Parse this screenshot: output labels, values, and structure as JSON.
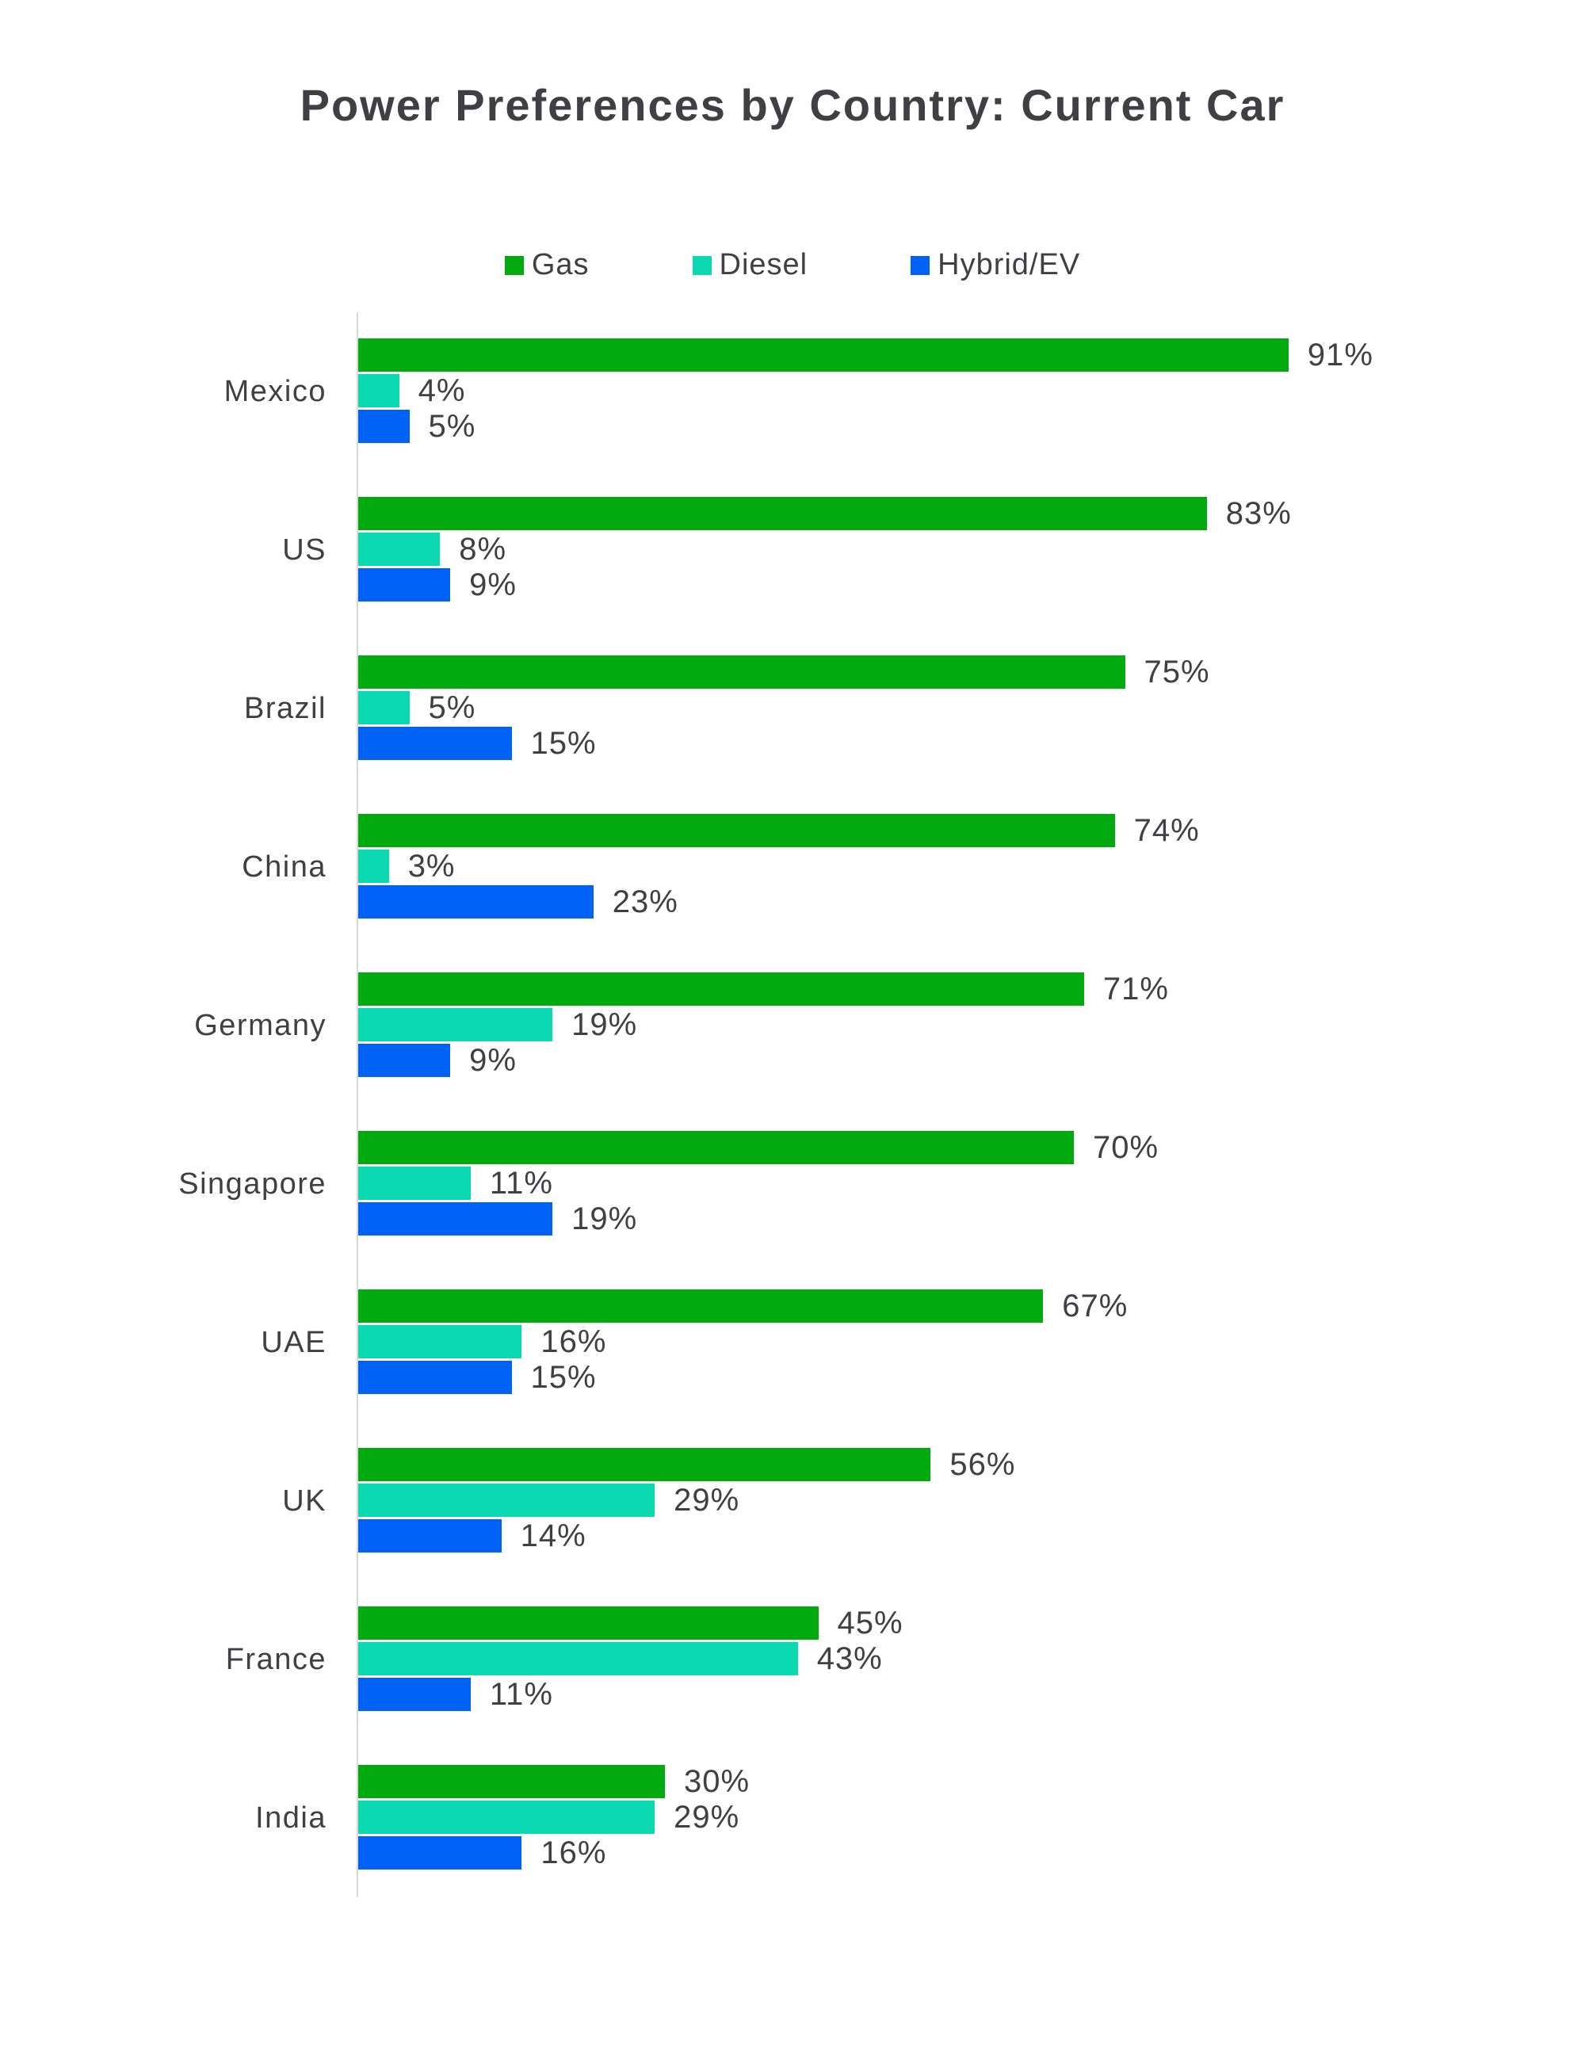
{
  "title": "Power Preferences by Country: Current Car",
  "chart_data": {
    "type": "bar",
    "orientation": "horizontal",
    "title": "Power Preferences by Country: Current Car",
    "categories": [
      "Mexico",
      "US",
      "Brazil",
      "China",
      "Germany",
      "Singapore",
      "UAE",
      "UK",
      "France",
      "India"
    ],
    "series": [
      {
        "name": "Gas",
        "color": "#00aa0f",
        "values": [
          91,
          83,
          75,
          74,
          71,
          70,
          67,
          56,
          45,
          30
        ]
      },
      {
        "name": "Diesel",
        "color": "#0bd9b2",
        "values": [
          4,
          8,
          5,
          3,
          19,
          11,
          16,
          29,
          43,
          29
        ]
      },
      {
        "name": "Hybrid/EV",
        "color": "#0062f5",
        "values": [
          5,
          9,
          15,
          23,
          9,
          19,
          15,
          14,
          11,
          16
        ]
      }
    ],
    "value_suffix": "%",
    "xlim": [
      0,
      120
    ],
    "grid": false,
    "legend_position": "top",
    "legend_labels": [
      "Gas",
      "Diesel",
      "Hybrid/EV"
    ],
    "axis_color": "#d9d9d9",
    "text_color": "#3f3f44",
    "value_labels_shown": true
  }
}
